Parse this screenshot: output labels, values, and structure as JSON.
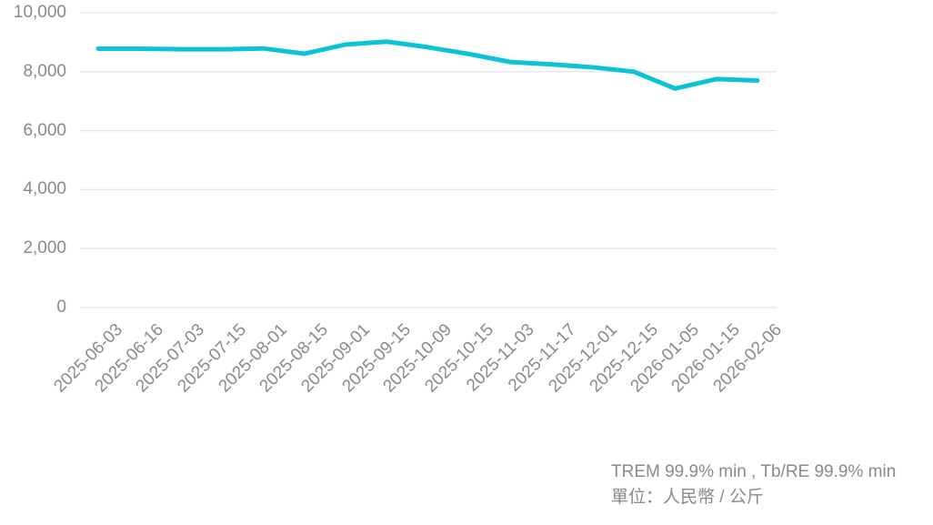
{
  "chart_data": {
    "type": "line",
    "title": "",
    "categories": [
      "2025-06-03",
      "2025-06-16",
      "2025-07-03",
      "2025-07-15",
      "2025-08-01",
      "2025-08-15",
      "2025-09-01",
      "2025-09-15",
      "2025-10-09",
      "2025-10-15",
      "2025-11-03",
      "2025-11-17",
      "2025-12-01",
      "2025-12-15",
      "2026-01-05",
      "2026-01-15",
      "2026-02-06"
    ],
    "series": [
      {
        "name": "TREM 99.9% min , Tb/RE 99.9% min",
        "values": [
          8780,
          8780,
          8760,
          8760,
          8790,
          8610,
          8920,
          9020,
          8830,
          8600,
          8330,
          8250,
          8150,
          8000,
          7430,
          7750,
          7700
        ]
      }
    ],
    "xlabel": "",
    "ylabel": "",
    "ylim": [
      0,
      10000
    ],
    "yticks": [
      0,
      2000,
      4000,
      6000,
      8000,
      10000
    ],
    "ytick_labels": [
      "0",
      "2,000",
      "4,000",
      "6,000",
      "8,000",
      "10,000"
    ],
    "grid": "horizontal-only",
    "legend_position": "none"
  },
  "footer": {
    "line1": "TREM 99.9% min , Tb/RE 99.9% min",
    "line2": "單位：人民幣 / 公斤"
  },
  "colors": {
    "line": "#0ac3d7",
    "gridline": "#e5e5e5",
    "axis_text": "#8a8a8a",
    "background": "#ffffff"
  }
}
